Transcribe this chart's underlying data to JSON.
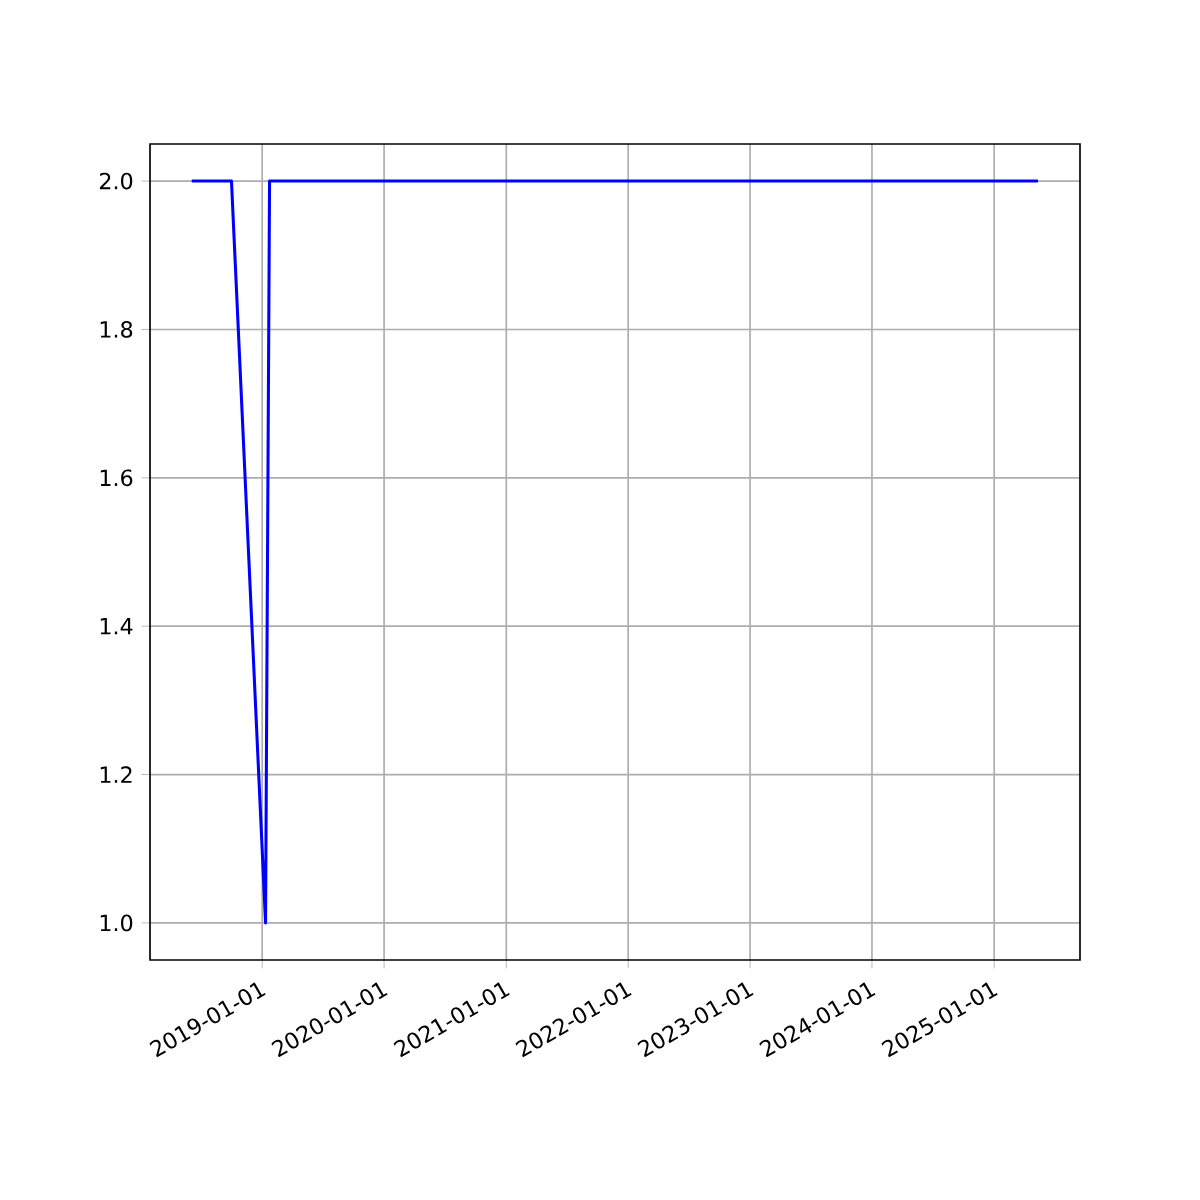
{
  "chart_data": {
    "type": "line",
    "x": [
      "2018-06-04",
      "2018-10-01",
      "2019-01-11",
      "2019-01-23",
      "2025-05-12"
    ],
    "series": [
      {
        "color": "#0000ff",
        "values": [
          2.0,
          2.0,
          1.0,
          2.0,
          2.0
        ]
      }
    ],
    "xlim": [
      "2018-01-30",
      "2025-09-15"
    ],
    "xticks": [
      "2019-01-01",
      "2020-01-01",
      "2021-01-01",
      "2022-01-01",
      "2023-01-01",
      "2024-01-01",
      "2025-01-01"
    ],
    "ylim": [
      0.95,
      2.05
    ],
    "yticks": [
      {
        "value": 1.0,
        "label": "1.0"
      },
      {
        "value": 1.2,
        "label": "1.2"
      },
      {
        "value": 1.4,
        "label": "1.4"
      },
      {
        "value": 1.6,
        "label": "1.6"
      },
      {
        "value": 1.8,
        "label": "1.8"
      },
      {
        "value": 2.0,
        "label": "2.0"
      }
    ],
    "grid": true,
    "marker": "none",
    "line_style": "solid"
  }
}
